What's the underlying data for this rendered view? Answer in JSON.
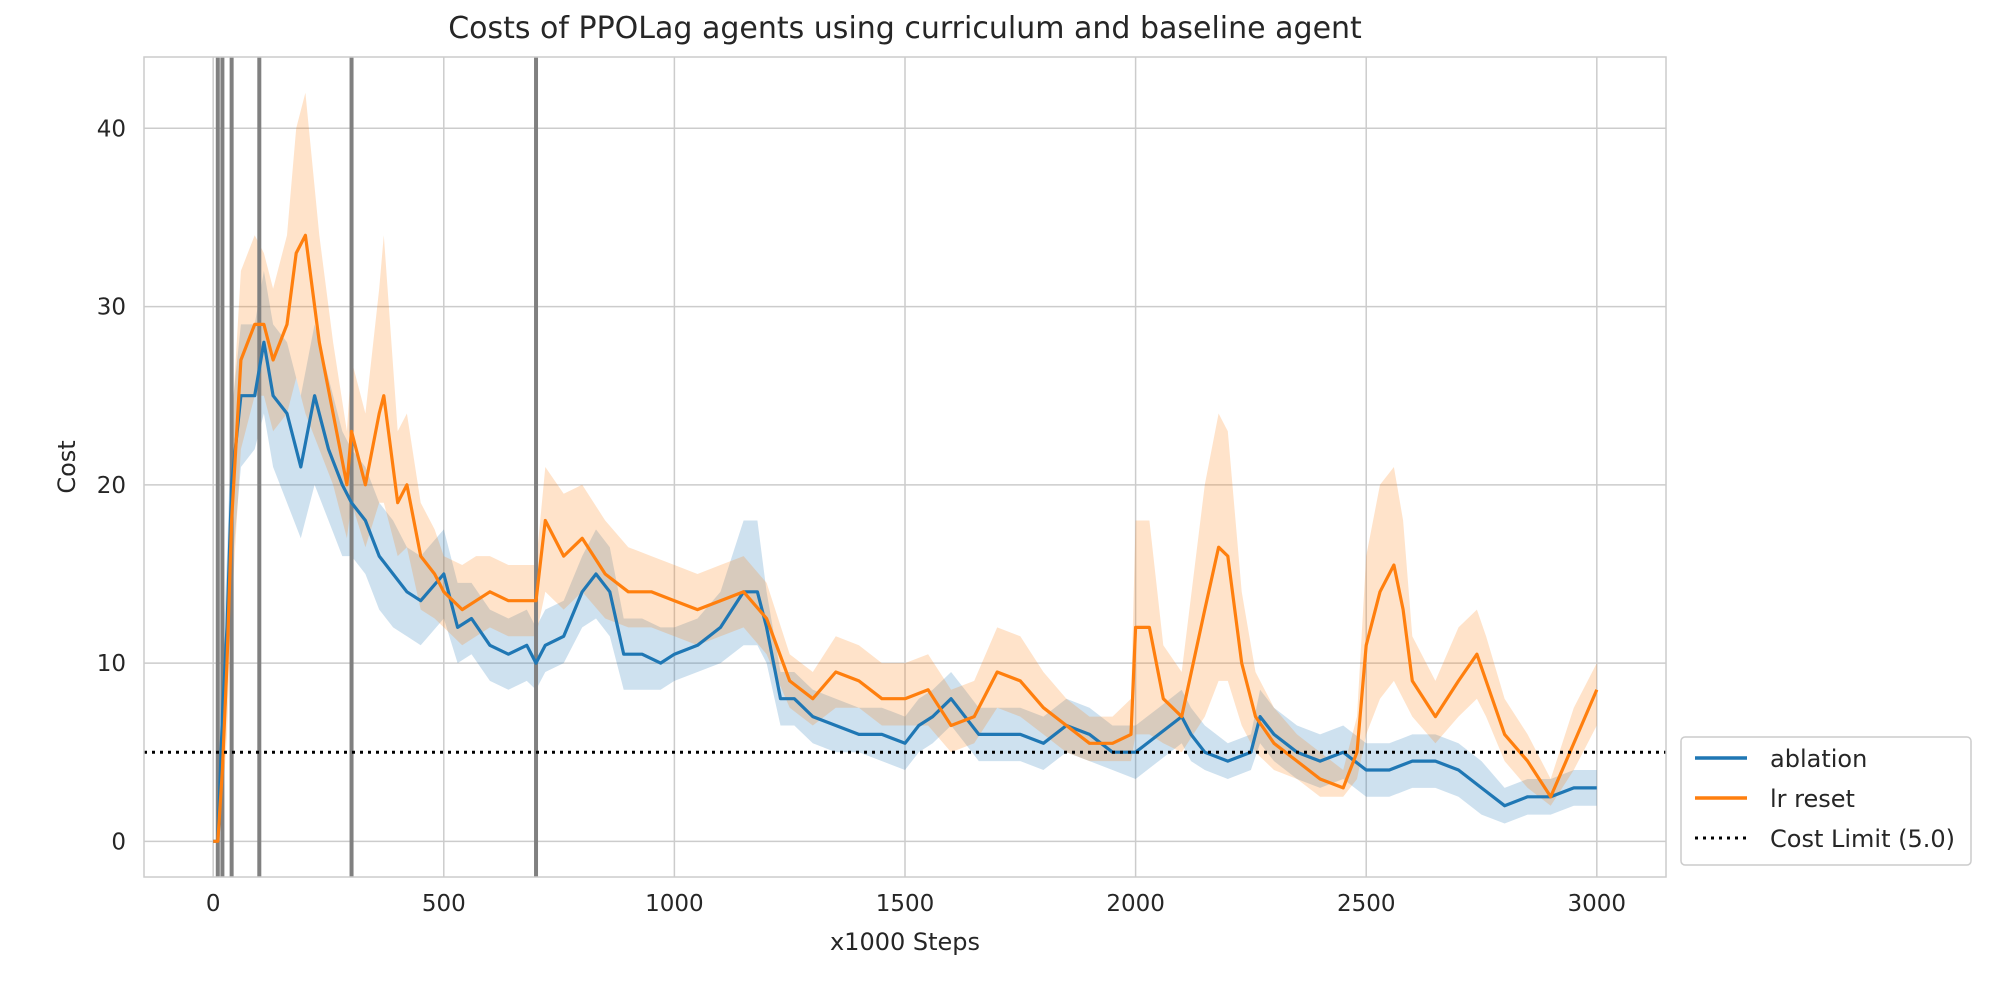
{
  "chart_data": {
    "type": "line",
    "title": "Costs of PPOLag agents using curriculum and baseline agent",
    "xlabel": "x1000 Steps",
    "ylabel": "Cost",
    "xlim": [
      -150,
      3150
    ],
    "ylim": [
      -2,
      44
    ],
    "xticks": [
      0,
      500,
      1000,
      1500,
      2000,
      2500,
      3000
    ],
    "yticks": [
      0,
      10,
      20,
      30,
      40
    ],
    "grid": true,
    "legend_position": "outside lower-right",
    "curriculum_switches": [
      10,
      20,
      40,
      100,
      300,
      700
    ],
    "cost_limit": {
      "label": "Cost Limit (5.0)",
      "value": 5.0,
      "color": "#000000",
      "style": "dotted"
    },
    "series": [
      {
        "name": "ablation",
        "color": "#1f77b4",
        "x": [
          0,
          10,
          20,
          30,
          40,
          60,
          90,
          110,
          130,
          160,
          190,
          220,
          250,
          280,
          300,
          330,
          360,
          390,
          420,
          450,
          500,
          530,
          560,
          600,
          640,
          680,
          700,
          720,
          760,
          800,
          830,
          860,
          890,
          930,
          970,
          1000,
          1050,
          1100,
          1150,
          1180,
          1200,
          1230,
          1260,
          1300,
          1350,
          1400,
          1450,
          1500,
          1530,
          1560,
          1600,
          1630,
          1660,
          1700,
          1750,
          1800,
          1850,
          1900,
          1950,
          2000,
          2050,
          2100,
          2120,
          2150,
          2200,
          2250,
          2270,
          2300,
          2350,
          2400,
          2450,
          2500,
          2550,
          2600,
          2650,
          2700,
          2750,
          2800,
          2850,
          2900,
          2950,
          3000
        ],
        "y": [
          0,
          0,
          7,
          12,
          20,
          25,
          25,
          28,
          25,
          24,
          21,
          25,
          22,
          20,
          19,
          18,
          16,
          15,
          14,
          13.5,
          15,
          12,
          12.5,
          11,
          10.5,
          11,
          10,
          11,
          11.5,
          14,
          15,
          14,
          10.5,
          10.5,
          10,
          10.5,
          11,
          12,
          14,
          14,
          12,
          8,
          8,
          7,
          6.5,
          6,
          6,
          5.5,
          6.5,
          7,
          8,
          7,
          6,
          6,
          6,
          5.5,
          6.5,
          6,
          5,
          5,
          6,
          7,
          6,
          5,
          4.5,
          5,
          7,
          6,
          5,
          4.5,
          5,
          4,
          4,
          4.5,
          4.5,
          4,
          3,
          2,
          2.5,
          2.5,
          3,
          3
        ],
        "lower": [
          0,
          0,
          4,
          8,
          15,
          21,
          22,
          24,
          21,
          19,
          17,
          20,
          18,
          16,
          16,
          15,
          13,
          12,
          11.5,
          11,
          12.5,
          10,
          10.5,
          9,
          8.5,
          9,
          8.5,
          9.5,
          10,
          12,
          12.5,
          11.5,
          8.5,
          8.5,
          8.5,
          9,
          9.5,
          10,
          11,
          11,
          10,
          6.5,
          6.5,
          5.5,
          5,
          5,
          4.5,
          4,
          5,
          5.5,
          6.5,
          5.5,
          4.5,
          4.5,
          4.5,
          4,
          5,
          4.5,
          4,
          3.5,
          4.5,
          5.5,
          4.5,
          4,
          3.5,
          4,
          5.5,
          4.5,
          3.5,
          3,
          3.5,
          2.5,
          2.5,
          3,
          3,
          2.5,
          1.5,
          1,
          1.5,
          1.5,
          2,
          2
        ],
        "upper": [
          0,
          0,
          10,
          16,
          24,
          29,
          29,
          32,
          29,
          28,
          25,
          29,
          26,
          23,
          22,
          21,
          19,
          18,
          16.5,
          16,
          17.5,
          14.5,
          14.5,
          13,
          12.5,
          13,
          12,
          13,
          13.5,
          16,
          17.5,
          16.5,
          12.5,
          12.5,
          12,
          12,
          12.5,
          14,
          18,
          18,
          14,
          9.5,
          9.5,
          8.5,
          8,
          7.5,
          7.5,
          7,
          8,
          8.5,
          9.5,
          8.5,
          7.5,
          7.5,
          7.5,
          7,
          8,
          7.5,
          6.5,
          6.5,
          7.5,
          8.5,
          7.5,
          6.5,
          5.5,
          6,
          8.5,
          7.5,
          6.5,
          6,
          6.5,
          5.5,
          5.5,
          6,
          6,
          5.5,
          4.5,
          3,
          3.5,
          3.5,
          4,
          4
        ]
      },
      {
        "name": "lr reset",
        "color": "#ff7f0e",
        "x": [
          0,
          10,
          20,
          30,
          40,
          60,
          90,
          110,
          130,
          160,
          180,
          200,
          230,
          260,
          290,
          300,
          330,
          360,
          370,
          400,
          420,
          450,
          480,
          500,
          540,
          570,
          600,
          640,
          680,
          700,
          720,
          760,
          800,
          850,
          900,
          950,
          1000,
          1050,
          1100,
          1150,
          1200,
          1250,
          1300,
          1350,
          1400,
          1450,
          1500,
          1550,
          1600,
          1650,
          1700,
          1750,
          1800,
          1850,
          1900,
          1950,
          1990,
          2000,
          2030,
          2060,
          2100,
          2150,
          2180,
          2200,
          2230,
          2260,
          2300,
          2350,
          2400,
          2450,
          2480,
          2500,
          2530,
          2560,
          2580,
          2600,
          2650,
          2700,
          2740,
          2760,
          2800,
          2850,
          2900,
          2950,
          3000
        ],
        "y": [
          0,
          0,
          4,
          10,
          18,
          27,
          29,
          29,
          27,
          29,
          33,
          34,
          28,
          24,
          20,
          23,
          20,
          24,
          25,
          19,
          20,
          16,
          15,
          14,
          13,
          13.5,
          14,
          13.5,
          13.5,
          13.5,
          18,
          16,
          17,
          15,
          14,
          14,
          13.5,
          13,
          13.5,
          14,
          12.5,
          9,
          8,
          9.5,
          9,
          8,
          8,
          8.5,
          6.5,
          7,
          9.5,
          9,
          7.5,
          6.5,
          5.5,
          5.5,
          6,
          12,
          12,
          8,
          7,
          13,
          16.5,
          16,
          10,
          7,
          5.5,
          4.5,
          3.5,
          3,
          5,
          11,
          14,
          15.5,
          13,
          9,
          7,
          9,
          10.5,
          9,
          6,
          4.5,
          2.5,
          5.5,
          8.5
        ],
        "lower": [
          0,
          0,
          2,
          6,
          13,
          22,
          25,
          25,
          23,
          24,
          26,
          24,
          22,
          20,
          17,
          19,
          16.5,
          19,
          19,
          16,
          16.5,
          13,
          12.5,
          12,
          11,
          11.5,
          12,
          11.5,
          11.5,
          11.5,
          14,
          13,
          14,
          12.5,
          12,
          12,
          11.5,
          11,
          11.5,
          12,
          10.5,
          7.5,
          6.5,
          7.5,
          7.5,
          6.5,
          6.5,
          6.5,
          5,
          5.5,
          7.5,
          7,
          6,
          5,
          4.5,
          4.5,
          4.5,
          6,
          6,
          5.5,
          5,
          7,
          9,
          9,
          6.5,
          5,
          4,
          3.5,
          2.5,
          2.5,
          3.5,
          6,
          8,
          9,
          8,
          7,
          5.5,
          7,
          8,
          7,
          4.5,
          3,
          2,
          4,
          6.5
        ],
        "upper": [
          0,
          0,
          6,
          14,
          23,
          32,
          34,
          33,
          31,
          34,
          40,
          42,
          34,
          28,
          23,
          27,
          24,
          31,
          34,
          23,
          24,
          19,
          17.5,
          16,
          15.5,
          16,
          16,
          15.5,
          15.5,
          15.5,
          21,
          19.5,
          20,
          18,
          16.5,
          16,
          15.5,
          15,
          15.5,
          16,
          14.5,
          10.5,
          9.5,
          11.5,
          11,
          10,
          10,
          10.5,
          8.5,
          9,
          12,
          11.5,
          9.5,
          8,
          7,
          7,
          8,
          18,
          18,
          11,
          9.5,
          20,
          24,
          23,
          14,
          9.5,
          7.5,
          6,
          5,
          4,
          7,
          16,
          20,
          21,
          18,
          11.5,
          9,
          12,
          13,
          11.5,
          8,
          6,
          3.5,
          7.5,
          10
        ]
      }
    ]
  }
}
